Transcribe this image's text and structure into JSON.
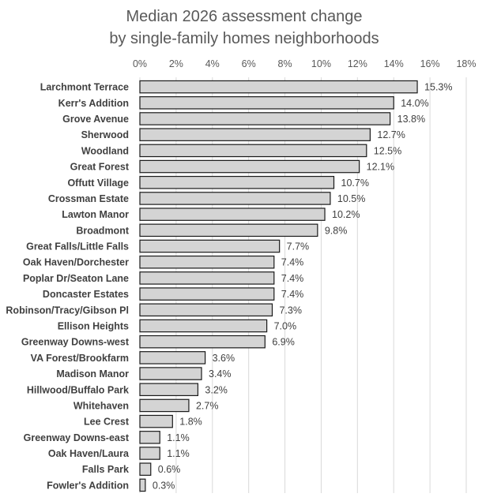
{
  "chart_data": {
    "type": "bar",
    "orientation": "horizontal",
    "title": [
      "Median 2026 assessment change",
      "by single-family homes neighborhoods"
    ],
    "xlabel": "",
    "ylabel": "",
    "xlim": [
      0,
      18
    ],
    "xticks": [
      "0%",
      "2%",
      "4%",
      "6%",
      "8%",
      "10%",
      "12%",
      "14%",
      "16%",
      "18%"
    ],
    "xtick_values": [
      0,
      2,
      4,
      6,
      8,
      10,
      12,
      14,
      16,
      18
    ],
    "grid": true,
    "legend": "none",
    "bar_fill": "#d4d4d4",
    "bar_stroke": "#1a1a1a",
    "categories": [
      "Larchmont Terrace",
      "Kerr's Addition",
      "Grove Avenue",
      "Sherwood",
      "Woodland",
      "Great Forest",
      "Offutt Village",
      "Crossman Estate",
      "Lawton Manor",
      "Broadmont",
      "Great Falls/Little Falls",
      "Oak Haven/Dorchester",
      "Poplar Dr/Seaton Lane",
      "Doncaster Estates",
      "Robinson/Tracy/Gibson Pl",
      "Ellison Heights",
      "Greenway Downs-west",
      "VA Forest/Brookfarm",
      "Madison Manor",
      "Hillwood/Buffalo Park",
      "Whitehaven",
      "Lee Crest",
      "Greenway Downs-east",
      "Oak Haven/Laura",
      "Falls Park",
      "Fowler's Addition"
    ],
    "values": [
      15.3,
      14.0,
      13.8,
      12.7,
      12.5,
      12.1,
      10.7,
      10.5,
      10.2,
      9.8,
      7.7,
      7.4,
      7.4,
      7.4,
      7.3,
      7.0,
      6.9,
      3.6,
      3.4,
      3.2,
      2.7,
      1.8,
      1.1,
      1.1,
      0.6,
      0.3
    ],
    "data_labels": [
      "15.3%",
      "14.0%",
      "13.8%",
      "12.7%",
      "12.5%",
      "12.1%",
      "10.7%",
      "10.5%",
      "10.2%",
      "9.8%",
      "7.7%",
      "7.4%",
      "7.4%",
      "7.4%",
      "7.3%",
      "7.0%",
      "6.9%",
      "3.6%",
      "3.4%",
      "3.2%",
      "2.7%",
      "1.8%",
      "1.1%",
      "1.1%",
      "0.6%",
      "0.3%"
    ]
  }
}
